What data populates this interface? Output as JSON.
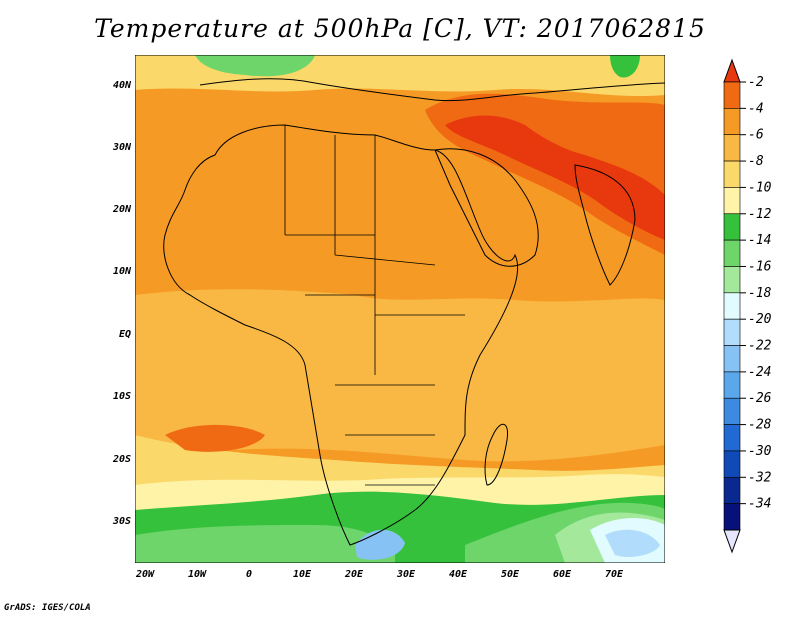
{
  "title": "Temperature at 500hPa [C], VT: 2017062815",
  "footer": "GrADS: IGES/COLA",
  "lat_ticks": [
    "40N",
    "30N",
    "20N",
    "10N",
    "EQ",
    "10S",
    "20S",
    "30S"
  ],
  "lon_ticks": [
    "20W",
    "10W",
    "0",
    "10E",
    "20E",
    "30E",
    "40E",
    "50E",
    "60E",
    "70E"
  ],
  "colorbar": {
    "labels": [
      "-2",
      "-4",
      "-6",
      "-8",
      "-10",
      "-12",
      "-14",
      "-16",
      "-18",
      "-20",
      "-22",
      "-24",
      "-26",
      "-28",
      "-30",
      "-32",
      "-34"
    ],
    "colors": [
      "#e8390e",
      "#f06a13",
      "#f59a25",
      "#f8b843",
      "#fbd86a",
      "#fff3a8",
      "#36c13c",
      "#6dd56a",
      "#a4e89c",
      "#e1fbff",
      "#b1dcfb",
      "#86c2f4",
      "#5ba7ec",
      "#3d8ae1",
      "#216ad3",
      "#104ab6",
      "#0a2990",
      "#08107a",
      "#e6e6ff"
    ]
  },
  "chart_data": {
    "type": "heatmap",
    "title": "Temperature at 500hPa [C], VT: 2017062815",
    "x_range": [
      "20W",
      "80E"
    ],
    "y_range": [
      "37S",
      "45N"
    ],
    "unit": "C",
    "levels": [
      -2,
      -4,
      -6,
      -8,
      -10,
      -12,
      -14,
      -16,
      -18,
      -20,
      -22,
      -24,
      -26,
      -28,
      -30,
      -32,
      -34
    ]
  }
}
